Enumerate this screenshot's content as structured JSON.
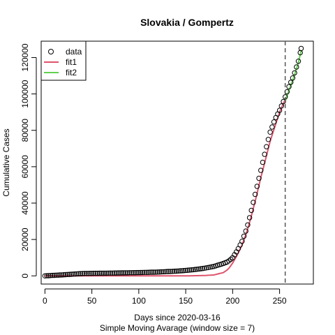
{
  "chart_data": {
    "type": "scatter",
    "title": "Slovakia / Gompertz",
    "xlabel": "Days since 2020-03-16",
    "xlabel_sub": "Simple Moving Avarage (window size = 7)",
    "ylabel": "Cumulative Cases",
    "xlim": [
      -4,
      286
    ],
    "ylim": [
      -4500,
      129000
    ],
    "x_ticks": [
      0,
      50,
      100,
      150,
      200,
      250
    ],
    "y_ticks": [
      0,
      20000,
      40000,
      60000,
      80000,
      100000,
      120000
    ],
    "vline_x": 256,
    "legend_position": "top-left",
    "legend": [
      {
        "label": "data",
        "kind": "open-circle",
        "color": "#000000"
      },
      {
        "label": "fit1",
        "kind": "line",
        "color": "#DF536B"
      },
      {
        "label": "fit2",
        "kind": "line",
        "color": "#61D04F"
      }
    ],
    "series": [
      {
        "name": "data",
        "x_start": 0,
        "x_end": 273,
        "x_step": 2,
        "anchors_x": [
          0,
          20,
          40,
          60,
          80,
          100,
          120,
          140,
          150,
          160,
          170,
          180,
          190,
          195,
          200,
          205,
          210,
          215,
          220,
          225,
          230,
          235,
          240,
          245,
          250,
          255,
          260,
          265,
          270,
          273
        ],
        "anchors_y": [
          0,
          600,
          1300,
          1450,
          1600,
          1800,
          2100,
          2600,
          3000,
          3500,
          4200,
          5200,
          6800,
          7800,
          10000,
          14000,
          19000,
          26000,
          36000,
          47000,
          58000,
          69000,
          79000,
          86000,
          91000,
          97000,
          104000,
          110000,
          118000,
          125000
        ]
      },
      {
        "name": "fit1",
        "x_start": 0,
        "x_end": 256,
        "x_step": 2,
        "anchors_x": [
          0,
          100,
          150,
          170,
          180,
          190,
          195,
          200,
          205,
          210,
          215,
          220,
          225,
          230,
          235,
          240,
          245,
          250,
          256
        ],
        "anchors_y": [
          0,
          0,
          0,
          200,
          500,
          1800,
          3500,
          7000,
          11500,
          17000,
          24000,
          33000,
          43000,
          54000,
          64000,
          74000,
          82000,
          90000,
          97000
        ]
      },
      {
        "name": "fit2",
        "x_start": 256,
        "x_end": 273,
        "x_step": 1,
        "anchors_x": [
          256,
          260,
          265,
          270,
          273
        ],
        "anchors_y": [
          96000,
          102000,
          109000,
          117000,
          124000
        ]
      }
    ]
  }
}
